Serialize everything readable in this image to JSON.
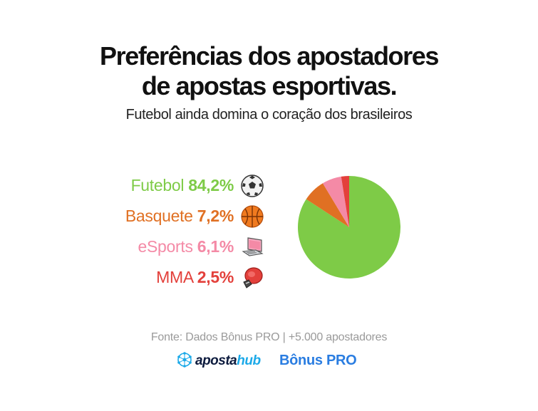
{
  "header": {
    "title_line1": "Preferências dos apostadores",
    "title_line2": "de apostas esportivas.",
    "subtitle": "Futebol ainda domina o coração dos brasileiros"
  },
  "chart_data": {
    "type": "pie",
    "title": "Preferências dos apostadores de apostas esportivas.",
    "subtitle": "Futebol ainda domina o coração dos brasileiros",
    "categories": [
      "Futebol",
      "Basquete",
      "eSports",
      "MMA"
    ],
    "values": [
      84.2,
      7.2,
      6.1,
      2.5
    ],
    "value_labels": [
      "84,2%",
      "7,2%",
      "6,1%",
      "2,5%"
    ],
    "colors": [
      "#7ecb47",
      "#e07023",
      "#f48aa6",
      "#e3403b"
    ],
    "legend_placement": "left"
  },
  "legend": {
    "items": [
      {
        "label": "Futebol",
        "value": "84,2%",
        "color": "#7ecb47",
        "icon": "soccer-ball-icon"
      },
      {
        "label": "Basquete",
        "value": "7,2%",
        "color": "#e07023",
        "icon": "basketball-icon"
      },
      {
        "label": "eSports",
        "value": "6,1%",
        "color": "#f48aa6",
        "icon": "laptop-gaming-icon"
      },
      {
        "label": "MMA",
        "value": "2,5%",
        "color": "#e3403b",
        "icon": "boxing-glove-icon"
      }
    ]
  },
  "footer": {
    "source": "Fonte: Dados Bônus PRO | +5.000 apostadores",
    "logo_hub_main": "aposta",
    "logo_hub_accent": "hub",
    "logo_bonus": "Bônus PRO"
  }
}
